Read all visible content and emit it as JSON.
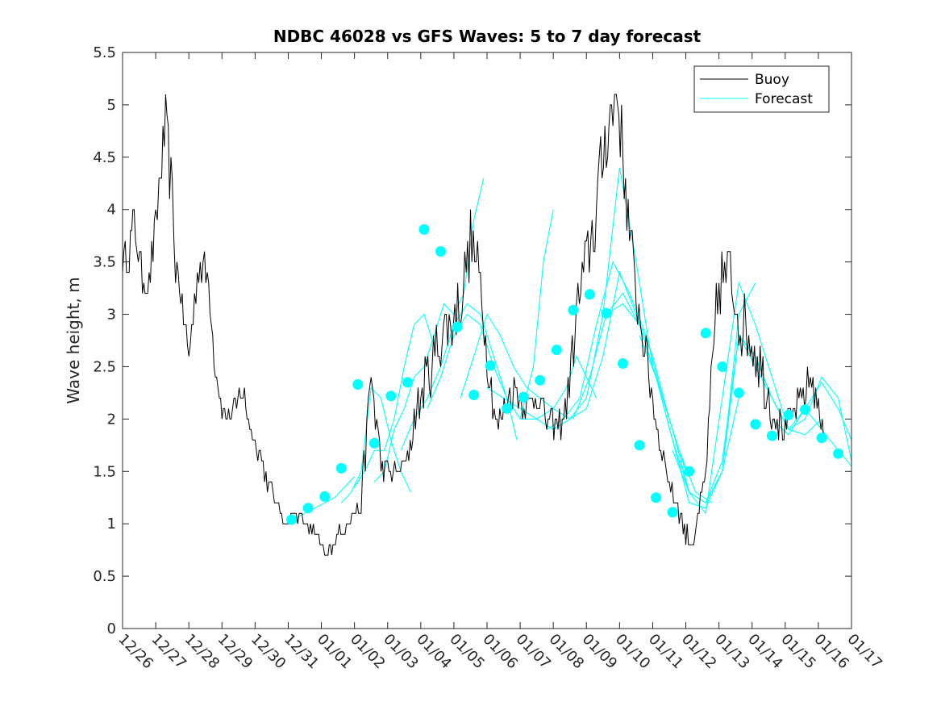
{
  "chart_data": {
    "type": "line",
    "title": "NDBC 46028 vs GFS Waves: 5 to 7 day forecast",
    "xlabel": "",
    "ylabel": "Wave height, m",
    "xlim": [
      0,
      22
    ],
    "ylim": [
      0,
      5.5
    ],
    "yticks": [
      0,
      0.5,
      1,
      1.5,
      2,
      2.5,
      3,
      3.5,
      4,
      4.5,
      5,
      5.5
    ],
    "ytick_labels": [
      "0",
      "0.5",
      "1",
      "1.5",
      "2",
      "2.5",
      "3",
      "3.5",
      "4",
      "4.5",
      "5",
      "5.5"
    ],
    "xtick_labels": [
      "12/26",
      "12/27",
      "12/28",
      "12/29",
      "12/30",
      "12/31",
      "01/01",
      "01/02",
      "01/03",
      "01/04",
      "01/05",
      "01/06",
      "01/07",
      "01/08",
      "01/09",
      "01/10",
      "01/11",
      "01/12",
      "01/13",
      "01/14",
      "01/15",
      "01/16",
      "01/17"
    ],
    "x_units": "days since 12/26",
    "legend": {
      "position": "top-right",
      "entries": [
        {
          "name": "Buoy",
          "color": "#000000"
        },
        {
          "name": "Forecast",
          "color": "#00ffff"
        }
      ]
    },
    "series": [
      {
        "name": "Buoy",
        "color": "#000000",
        "x": [
          0,
          0.2,
          0.35,
          0.6,
          0.8,
          1.0,
          1.1,
          1.3,
          1.5,
          1.6,
          1.8,
          2.0,
          2.3,
          2.6,
          2.8,
          3.0,
          3.2,
          3.4,
          3.6,
          3.8,
          4.0,
          4.2,
          4.5,
          4.8,
          5.0,
          5.2,
          5.5,
          5.8,
          6.0,
          6.1,
          6.2,
          6.35,
          6.5,
          6.8,
          7.0,
          7.2,
          7.5,
          7.8,
          8.0,
          8.3,
          8.6,
          8.8,
          9.0,
          9.3,
          9.6,
          9.9,
          10.2,
          10.5,
          10.8,
          11.0,
          11.3,
          11.6,
          11.9,
          12.2,
          12.5,
          12.8,
          13.1,
          13.4,
          13.7,
          14.0,
          14.3,
          14.6,
          14.8,
          14.9,
          15.1,
          15.3,
          15.5,
          15.8,
          16.0,
          16.2,
          16.5,
          16.8,
          17.0,
          17.2,
          17.4,
          17.6,
          17.8,
          18.0,
          18.3,
          18.6,
          18.9,
          19.2,
          19.5,
          19.8,
          20.0,
          20.2,
          20.5,
          20.8,
          21.0,
          21.2
        ],
        "values": [
          3.5,
          3.6,
          3.9,
          3.3,
          3.3,
          3.8,
          4.2,
          4.8,
          4.1,
          3.5,
          3.1,
          2.6,
          3.5,
          3.3,
          2.5,
          2.1,
          2.0,
          2.1,
          2.3,
          2.0,
          1.8,
          1.6,
          1.3,
          1.1,
          1.0,
          1.1,
          1.0,
          0.9,
          0.8,
          0.7,
          0.75,
          0.8,
          0.9,
          1.0,
          1.1,
          1.2,
          2.4,
          1.6,
          1.5,
          1.5,
          1.6,
          2.0,
          2.2,
          2.5,
          2.8,
          2.9,
          3.1,
          3.7,
          3.3,
          2.6,
          1.9,
          2.2,
          2.3,
          2.1,
          2.3,
          2.0,
          1.9,
          2.1,
          3.0,
          3.5,
          4.0,
          4.8,
          4.9,
          5.2,
          4.5,
          3.8,
          3.2,
          2.6,
          2.2,
          1.8,
          1.4,
          1.1,
          0.9,
          0.8,
          1.1,
          1.5,
          2.4,
          3.3,
          3.4,
          3.0,
          2.8,
          2.6,
          2.2,
          2.0,
          1.9,
          2.0,
          2.2,
          2.4,
          2.1,
          1.8
        ],
        "noise": [
          0.15,
          0.2,
          0.25,
          0.15,
          0.15,
          0.25,
          0.3,
          0.3,
          0.25,
          0.2,
          0.15,
          0.1,
          0.2,
          0.2,
          0.15,
          0.1,
          0.1,
          0.1,
          0.15,
          0.1,
          0.1,
          0.1,
          0.1,
          0.05,
          0.05,
          0.05,
          0.05,
          0.05,
          0.05,
          0.05,
          0.05,
          0.05,
          0.05,
          0.05,
          0.05,
          0.1,
          0.3,
          0.15,
          0.1,
          0.1,
          0.15,
          0.2,
          0.25,
          0.3,
          0.3,
          0.3,
          0.3,
          0.3,
          0.25,
          0.2,
          0.15,
          0.2,
          0.2,
          0.15,
          0.2,
          0.15,
          0.15,
          0.2,
          0.3,
          0.35,
          0.4,
          0.4,
          0.4,
          0.4,
          0.35,
          0.3,
          0.25,
          0.2,
          0.15,
          0.15,
          0.1,
          0.1,
          0.1,
          0.1,
          0.1,
          0.15,
          0.3,
          0.35,
          0.35,
          0.35,
          0.3,
          0.3,
          0.25,
          0.2,
          0.15,
          0.15,
          0.2,
          0.2,
          0.15,
          0.1
        ]
      }
    ],
    "forecast_runs": [
      {
        "x": [
          5.2,
          5.5,
          5.8,
          6.1,
          6.4,
          6.7,
          7.0
        ],
        "values": [
          1.05,
          1.1,
          1.15,
          1.2,
          1.25,
          1.35,
          1.45
        ]
      },
      {
        "x": [
          6.6,
          6.9,
          7.2,
          7.5,
          7.8,
          8.1,
          8.4,
          8.7
        ],
        "values": [
          1.2,
          1.3,
          1.5,
          2.3,
          2.2,
          1.8,
          1.5,
          1.3
        ]
      },
      {
        "x": [
          7.0,
          7.3,
          7.6,
          7.9,
          8.2,
          8.5,
          8.8,
          9.1,
          9.4
        ],
        "values": [
          1.35,
          1.5,
          1.7,
          1.7,
          2.0,
          2.5,
          2.9,
          3.0,
          2.7
        ]
      },
      {
        "x": [
          7.6,
          7.9,
          8.2,
          8.5,
          8.8,
          9.1,
          9.4,
          9.7,
          10.0,
          10.3,
          10.6,
          10.9
        ],
        "values": [
          1.4,
          1.5,
          1.9,
          2.1,
          2.4,
          2.5,
          2.8,
          3.1,
          3.0,
          3.2,
          3.9,
          4.3
        ]
      },
      {
        "x": [
          8.4,
          8.8,
          9.2,
          9.6,
          10.0,
          10.4,
          10.8,
          11.2,
          11.6,
          11.9
        ],
        "values": [
          1.7,
          2.0,
          2.2,
          2.5,
          2.9,
          3.1,
          3.0,
          2.6,
          2.2,
          1.8
        ]
      },
      {
        "x": [
          9.2,
          9.6,
          10.0,
          10.4,
          10.8,
          11.2,
          11.6,
          12.0,
          12.4,
          12.7,
          13.0
        ],
        "values": [
          2.1,
          2.4,
          2.8,
          3.0,
          2.9,
          2.5,
          2.2,
          2.0,
          2.5,
          3.5,
          4.0
        ]
      },
      {
        "x": [
          10.2,
          10.6,
          11.0,
          11.4,
          11.8,
          12.2,
          12.6,
          13.0,
          13.4,
          13.7,
          14.0,
          14.3
        ],
        "values": [
          2.2,
          2.6,
          3.0,
          2.8,
          2.5,
          2.3,
          2.2,
          2.1,
          2.3,
          2.6,
          2.4,
          2.2
        ]
      },
      {
        "x": [
          11.0,
          11.5,
          12.0,
          12.5,
          13.0,
          13.5,
          14.0,
          14.5,
          15.0,
          15.5,
          16.0
        ],
        "values": [
          2.3,
          2.2,
          2.1,
          2.0,
          1.9,
          2.0,
          2.2,
          3.0,
          4.4,
          3.5,
          2.5
        ]
      },
      {
        "x": [
          12.0,
          12.5,
          13.0,
          13.5,
          14.0,
          14.5,
          15.0,
          15.5,
          16.0,
          16.5,
          17.0
        ],
        "values": [
          2.0,
          2.0,
          2.1,
          2.0,
          2.1,
          2.6,
          3.4,
          3.0,
          2.6,
          2.0,
          1.5
        ]
      },
      {
        "x": [
          12.8,
          13.3,
          13.8,
          14.3,
          14.8,
          15.3,
          15.8,
          16.3,
          16.8,
          17.3,
          17.8
        ],
        "values": [
          1.9,
          2.0,
          2.2,
          2.9,
          3.5,
          3.2,
          2.8,
          2.2,
          1.7,
          1.3,
          1.2
        ]
      },
      {
        "x": [
          13.6,
          14.1,
          14.6,
          15.1,
          15.6,
          16.1,
          16.6,
          17.1,
          17.6,
          18.1,
          18.6
        ],
        "values": [
          2.0,
          2.4,
          3.0,
          3.2,
          2.9,
          2.4,
          1.9,
          1.3,
          1.2,
          1.5,
          2.2
        ]
      },
      {
        "x": [
          14.6,
          15.1,
          15.6,
          16.1,
          16.6,
          17.1,
          17.6,
          18.1,
          18.6,
          19.1
        ],
        "values": [
          3.0,
          3.1,
          2.9,
          2.4,
          1.8,
          1.2,
          1.15,
          1.5,
          3.0,
          3.3
        ]
      },
      {
        "x": [
          15.6,
          16.1,
          16.6,
          17.1,
          17.6,
          18.1,
          18.6,
          19.1,
          19.6,
          20.1
        ],
        "values": [
          2.8,
          2.4,
          1.8,
          1.3,
          1.1,
          2.2,
          3.3,
          2.9,
          2.4,
          1.9
        ]
      },
      {
        "x": [
          16.6,
          17.1,
          17.6,
          18.1,
          18.6,
          19.1,
          19.6,
          20.1,
          20.6,
          21.1
        ],
        "values": [
          1.7,
          1.3,
          1.2,
          1.5,
          2.8,
          2.6,
          2.2,
          1.9,
          1.85,
          2.0
        ]
      },
      {
        "x": [
          17.6,
          18.1,
          18.6,
          19.1,
          19.6,
          20.1,
          20.6,
          21.1,
          21.6,
          22.0
        ],
        "values": [
          1.2,
          1.6,
          2.8,
          2.6,
          2.2,
          1.9,
          2.1,
          2.35,
          2.1,
          1.8
        ]
      },
      {
        "x": [
          18.6,
          19.1,
          19.6,
          20.1,
          20.6,
          21.1,
          21.6,
          22.0
        ],
        "values": [
          2.8,
          2.5,
          2.2,
          1.9,
          2.0,
          2.4,
          2.2,
          1.6
        ]
      },
      {
        "x": [
          19.6,
          20.1,
          20.6,
          21.1,
          21.6,
          22.0
        ],
        "values": [
          2.0,
          1.85,
          2.1,
          1.9,
          1.7,
          1.55
        ]
      }
    ],
    "forecast_points": {
      "x": [
        5.1,
        5.6,
        6.1,
        6.6,
        7.1,
        7.6,
        8.1,
        8.6,
        9.1,
        9.6,
        10.1,
        10.6,
        11.1,
        11.6,
        12.1,
        12.6,
        13.1,
        13.6,
        14.1,
        14.6,
        15.1,
        15.6,
        16.1,
        16.6,
        17.1,
        17.6,
        18.1,
        18.6,
        19.1,
        19.6,
        20.1,
        20.6,
        21.1,
        21.6
      ],
      "values": [
        1.04,
        1.15,
        1.26,
        1.53,
        2.33,
        1.77,
        2.22,
        2.35,
        3.81,
        3.6,
        2.88,
        2.23,
        2.51,
        2.1,
        2.21,
        2.37,
        2.66,
        3.04,
        3.19,
        3.01,
        2.53,
        1.75,
        1.25,
        1.11,
        1.5,
        2.82,
        2.5,
        2.25,
        1.95,
        1.84,
        2.04,
        2.09,
        1.82,
        1.67
      ]
    }
  }
}
